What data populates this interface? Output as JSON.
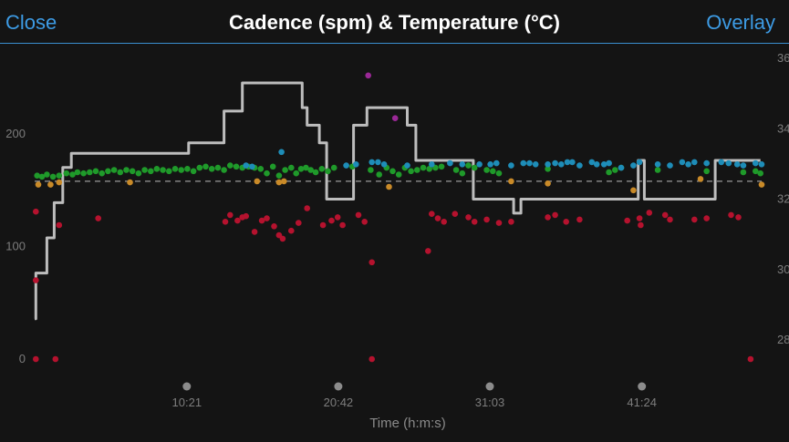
{
  "header": {
    "close_label": "Close",
    "title": "Cadence (spm) & Temperature (°C)",
    "overlay_label": "Overlay"
  },
  "chart_data": {
    "type": "scatter",
    "title": "Cadence (spm) & Temperature (°C)",
    "xlabel": "Time (h:m:s)",
    "ylabel": "",
    "x_units": "minutes",
    "xlim": [
      0,
      59.5
    ],
    "ylim": [
      0,
      200
    ],
    "y2lim": [
      28,
      36
    ],
    "x_ticks": [
      {
        "value": 12.45,
        "label": "10:21"
      },
      {
        "value": 24.85,
        "label": "20:42"
      },
      {
        "value": 37.25,
        "label": "31:03"
      },
      {
        "value": 49.7,
        "label": "41:24"
      }
    ],
    "y_ticks": [
      {
        "value": 0,
        "label": "0"
      },
      {
        "value": 100,
        "label": "100"
      },
      {
        "value": 200,
        "label": "200"
      }
    ],
    "y2_ticks": [
      {
        "value": 28,
        "label": "28"
      },
      {
        "value": 30,
        "label": "30"
      },
      {
        "value": 32,
        "label": "32"
      },
      {
        "value": 34,
        "label": "34"
      },
      {
        "value": 36,
        "label": "36"
      }
    ],
    "colors": {
      "green": "#1f9a2a",
      "blue": "#1e8db8",
      "orange": "#c98a28",
      "red": "#b5122e",
      "purple": "#9a2896",
      "temperature_line": "#bdbdbd",
      "reference_line": "#9a9a9a"
    },
    "reference_line": {
      "y": 158,
      "style": "dashed"
    },
    "cadence_points": {
      "green": [
        [
          0.2,
          163
        ],
        [
          0.6,
          162
        ],
        [
          1.0,
          164
        ],
        [
          1.5,
          162
        ],
        [
          2.0,
          163
        ],
        [
          2.6,
          165
        ],
        [
          3.1,
          164
        ],
        [
          3.5,
          166
        ],
        [
          4.0,
          165
        ],
        [
          4.5,
          166
        ],
        [
          5.0,
          167
        ],
        [
          5.5,
          165
        ],
        [
          6.0,
          167
        ],
        [
          6.5,
          168
        ],
        [
          7.0,
          166
        ],
        [
          7.5,
          168
        ],
        [
          8.0,
          167
        ],
        [
          8.5,
          165
        ],
        [
          9.0,
          168
        ],
        [
          9.5,
          167
        ],
        [
          10.0,
          169
        ],
        [
          10.5,
          168
        ],
        [
          11.0,
          167
        ],
        [
          11.5,
          169
        ],
        [
          12.0,
          168
        ],
        [
          12.5,
          169
        ],
        [
          13.0,
          167
        ],
        [
          13.5,
          170
        ],
        [
          14.0,
          171
        ],
        [
          14.5,
          169
        ],
        [
          15.0,
          170
        ],
        [
          15.5,
          168
        ],
        [
          16.0,
          172
        ],
        [
          16.5,
          171
        ],
        [
          17.0,
          170
        ],
        [
          17.5,
          171
        ],
        [
          18.0,
          170
        ],
        [
          18.5,
          169
        ],
        [
          19.0,
          165
        ],
        [
          19.5,
          171
        ],
        [
          20.0,
          163
        ],
        [
          20.5,
          168
        ],
        [
          21.0,
          170
        ],
        [
          21.4,
          165
        ],
        [
          21.8,
          169
        ],
        [
          22.2,
          170
        ],
        [
          22.6,
          168
        ],
        [
          23.0,
          166
        ],
        [
          23.5,
          169
        ],
        [
          24.0,
          167
        ],
        [
          24.5,
          170
        ],
        [
          26.0,
          171
        ],
        [
          27.5,
          168
        ],
        [
          28.2,
          164
        ],
        [
          28.8,
          170
        ],
        [
          29.3,
          167
        ],
        [
          29.8,
          164
        ],
        [
          30.3,
          170
        ],
        [
          30.8,
          167
        ],
        [
          31.3,
          168
        ],
        [
          31.8,
          170
        ],
        [
          32.3,
          169
        ],
        [
          32.8,
          170
        ],
        [
          33.3,
          171
        ],
        [
          34.5,
          168
        ],
        [
          35.0,
          165
        ],
        [
          35.5,
          172
        ],
        [
          36.0,
          170
        ],
        [
          37.0,
          168
        ],
        [
          37.5,
          167
        ],
        [
          38.0,
          165
        ],
        [
          42.0,
          169
        ],
        [
          47.0,
          166
        ],
        [
          47.5,
          168
        ],
        [
          48.0,
          170
        ],
        [
          51.0,
          168
        ],
        [
          55.0,
          167
        ],
        [
          58.0,
          166
        ],
        [
          59.0,
          167
        ],
        [
          59.4,
          165
        ]
      ],
      "blue": [
        [
          17.3,
          172
        ],
        [
          17.8,
          171
        ],
        [
          20.2,
          184
        ],
        [
          25.5,
          172
        ],
        [
          26.3,
          173
        ],
        [
          27.6,
          175
        ],
        [
          28.1,
          175
        ],
        [
          28.6,
          173
        ],
        [
          30.5,
          172
        ],
        [
          32.5,
          173
        ],
        [
          34.0,
          174
        ],
        [
          35.0,
          173
        ],
        [
          36.4,
          173
        ],
        [
          37.3,
          173
        ],
        [
          37.8,
          174
        ],
        [
          39.0,
          172
        ],
        [
          40.0,
          174
        ],
        [
          40.5,
          174
        ],
        [
          41.0,
          173
        ],
        [
          42.0,
          173
        ],
        [
          42.6,
          174
        ],
        [
          43.1,
          173
        ],
        [
          43.6,
          175
        ],
        [
          44.0,
          175
        ],
        [
          44.6,
          172
        ],
        [
          45.6,
          175
        ],
        [
          46.0,
          173
        ],
        [
          46.6,
          173
        ],
        [
          47.0,
          174
        ],
        [
          48.0,
          170
        ],
        [
          49.0,
          172
        ],
        [
          49.5,
          175
        ],
        [
          51.0,
          173
        ],
        [
          52.0,
          172
        ],
        [
          53.0,
          175
        ],
        [
          53.5,
          173
        ],
        [
          54.0,
          175
        ],
        [
          55.0,
          174
        ],
        [
          56.2,
          175
        ],
        [
          56.8,
          174
        ],
        [
          57.5,
          173
        ],
        [
          58.0,
          172
        ],
        [
          59.0,
          174
        ],
        [
          59.5,
          173
        ]
      ],
      "orange": [
        [
          0.3,
          155
        ],
        [
          1.3,
          155
        ],
        [
          2.0,
          157
        ],
        [
          7.8,
          157
        ],
        [
          18.2,
          158
        ],
        [
          20.0,
          157
        ],
        [
          20.4,
          158
        ],
        [
          29.0,
          153
        ],
        [
          39.0,
          158
        ],
        [
          42.0,
          156
        ],
        [
          49.0,
          150
        ],
        [
          54.5,
          160
        ],
        [
          59.5,
          155
        ]
      ],
      "red": [
        [
          0.1,
          131
        ],
        [
          0.1,
          70
        ],
        [
          0.1,
          0
        ],
        [
          1.7,
          0
        ],
        [
          2.0,
          119
        ],
        [
          5.2,
          125
        ],
        [
          15.6,
          122
        ],
        [
          16.0,
          128
        ],
        [
          16.6,
          123
        ],
        [
          17.0,
          126
        ],
        [
          17.3,
          127
        ],
        [
          18.0,
          113
        ],
        [
          18.6,
          123
        ],
        [
          19.0,
          125
        ],
        [
          19.6,
          118
        ],
        [
          20.0,
          110
        ],
        [
          20.3,
          107
        ],
        [
          21.0,
          114
        ],
        [
          21.6,
          121
        ],
        [
          22.3,
          134
        ],
        [
          23.6,
          119
        ],
        [
          24.3,
          123
        ],
        [
          24.8,
          126
        ],
        [
          25.2,
          119
        ],
        [
          26.5,
          128
        ],
        [
          27.0,
          122
        ],
        [
          27.6,
          86
        ],
        [
          27.6,
          0
        ],
        [
          32.2,
          96
        ],
        [
          32.5,
          129
        ],
        [
          33.0,
          125
        ],
        [
          33.5,
          122
        ],
        [
          34.4,
          129
        ],
        [
          35.5,
          126
        ],
        [
          36.0,
          122
        ],
        [
          37.0,
          124
        ],
        [
          38.0,
          121
        ],
        [
          39.0,
          122
        ],
        [
          42.0,
          126
        ],
        [
          42.6,
          128
        ],
        [
          43.5,
          122
        ],
        [
          44.6,
          124
        ],
        [
          48.5,
          123
        ],
        [
          49.5,
          125
        ],
        [
          49.6,
          119
        ],
        [
          50.3,
          130
        ],
        [
          51.6,
          128
        ],
        [
          52.0,
          124
        ],
        [
          54.0,
          124
        ],
        [
          55.0,
          125
        ],
        [
          57.0,
          128
        ],
        [
          57.6,
          126
        ],
        [
          58.6,
          0
        ]
      ],
      "purple": [
        [
          27.3,
          252
        ],
        [
          29.5,
          214
        ]
      ]
    },
    "temperature_series": {
      "name": "",
      "x": [
        0,
        0.1,
        0.1,
        1.0,
        1.0,
        1.6,
        1.6,
        2.3,
        2.3,
        3.0,
        3.0,
        11.9,
        11.9,
        12.6,
        12.6,
        13.6,
        13.6,
        15.1,
        15.1,
        15.5,
        15.5,
        16.4,
        16.4,
        17.0,
        17.0,
        18.0,
        18.0,
        21.2,
        21.2,
        21.9,
        21.9,
        22.3,
        22.3,
        23.3,
        23.3,
        23.9,
        23.9,
        25.5,
        25.5,
        26.1,
        26.1,
        27.2,
        27.2,
        28.2,
        28.2,
        30.5,
        30.5,
        31.2,
        31.2,
        35.2,
        35.2,
        35.9,
        35.9,
        39.2,
        39.2,
        39.8,
        39.8,
        45.7,
        45.7,
        46.4,
        46.4,
        49.4,
        49.4,
        49.9,
        49.9,
        51.3,
        51.3,
        55.7,
        55.7,
        56.1,
        56.1,
        57.5,
        57.5,
        58.0,
        58.0,
        59.4
      ],
      "y": [
        28.6,
        28.6,
        29.9,
        29.9,
        30.9,
        30.9,
        31.9,
        31.9,
        32.9,
        32.9,
        33.3,
        33.3,
        33.3,
        33.3,
        33.6,
        33.6,
        33.6,
        33.6,
        33.6,
        33.6,
        34.5,
        34.5,
        34.5,
        34.5,
        35.3,
        35.3,
        35.3,
        35.3,
        35.3,
        35.3,
        34.6,
        34.6,
        34.1,
        34.1,
        33.6,
        33.6,
        32.0,
        32.0,
        32.0,
        32.0,
        34.1,
        34.1,
        34.6,
        34.6,
        34.6,
        34.6,
        34.1,
        34.1,
        33.1,
        33.1,
        33.1,
        33.1,
        32.0,
        32.0,
        31.6,
        31.6,
        32.0,
        32.0,
        32.0,
        32.0,
        32.0,
        32.0,
        33.1,
        33.1,
        32.0,
        32.0,
        32.0,
        32.0,
        33.1,
        33.1,
        33.1,
        33.1,
        33.1,
        33.1,
        33.1,
        33.1
      ]
    }
  }
}
